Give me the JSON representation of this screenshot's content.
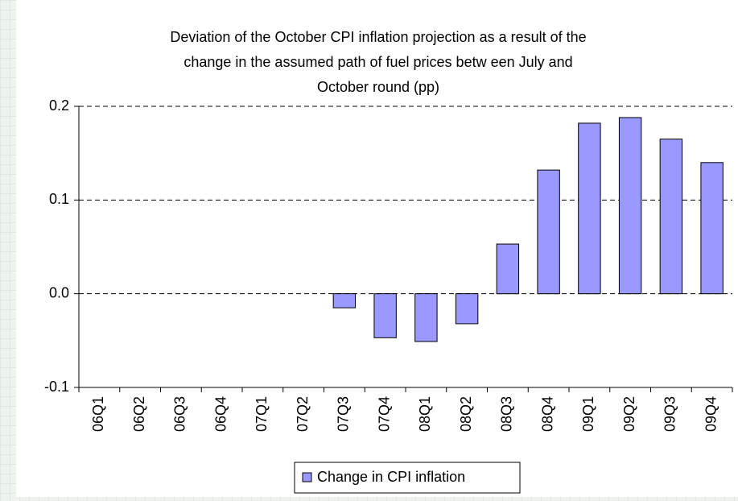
{
  "chart_data": {
    "type": "bar",
    "title": [
      "Deviation of the October CPI inflation projection as a result of the",
      "change in the assumed path of fuel prices betw een July and",
      "October round (pp)"
    ],
    "categories": [
      "06Q1",
      "06Q2",
      "06Q3",
      "06Q4",
      "07Q1",
      "07Q2",
      "07Q3",
      "07Q4",
      "08Q1",
      "08Q2",
      "08Q3",
      "08Q4",
      "09Q1",
      "09Q2",
      "09Q3",
      "09Q4"
    ],
    "series": [
      {
        "name": "Change in CPI inflation",
        "color": "#9999ff",
        "values": [
          0,
          0,
          0,
          0,
          0,
          0,
          -0.015,
          -0.047,
          -0.051,
          -0.032,
          0.053,
          0.132,
          0.182,
          0.188,
          0.165,
          0.14
        ]
      }
    ],
    "ylim": [
      -0.1,
      0.2
    ],
    "yticks": [
      -0.1,
      {
        "value": 0,
        "label": "0.0"
      },
      0.1,
      0.2
    ],
    "grid": true,
    "legend": "bottom"
  }
}
